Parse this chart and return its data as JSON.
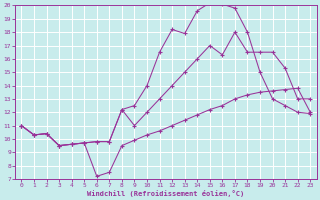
{
  "xlabel": "Windchill (Refroidissement éolien,°C)",
  "bg_color": "#c8ecec",
  "line_color": "#993399",
  "grid_color": "#ffffff",
  "xlim": [
    -0.5,
    23.5
  ],
  "ylim": [
    7,
    20
  ],
  "xticks": [
    0,
    1,
    2,
    3,
    4,
    5,
    6,
    7,
    8,
    9,
    10,
    11,
    12,
    13,
    14,
    15,
    16,
    17,
    18,
    19,
    20,
    21,
    22,
    23
  ],
  "yticks": [
    7,
    8,
    9,
    10,
    11,
    12,
    13,
    14,
    15,
    16,
    17,
    18,
    19,
    20
  ],
  "curve1_x": [
    0,
    1,
    2,
    3,
    4,
    5,
    6,
    7,
    8,
    9,
    10,
    11,
    12,
    13,
    14,
    15,
    16,
    17,
    18,
    19,
    20,
    21,
    22,
    23
  ],
  "curve1_y": [
    11.0,
    10.3,
    10.4,
    9.5,
    9.6,
    9.7,
    7.2,
    7.5,
    9.5,
    9.9,
    10.3,
    10.6,
    11.0,
    11.4,
    11.8,
    12.2,
    12.5,
    13.0,
    13.3,
    13.5,
    13.6,
    13.7,
    13.8,
    12.0
  ],
  "curve2_x": [
    0,
    1,
    2,
    3,
    4,
    5,
    6,
    7,
    8,
    9,
    10,
    11,
    12,
    13,
    14,
    15,
    16,
    17,
    18,
    19,
    20,
    21,
    22,
    23
  ],
  "curve2_y": [
    11.0,
    10.3,
    10.4,
    9.5,
    9.6,
    9.7,
    9.8,
    9.8,
    12.2,
    11.0,
    12.0,
    13.0,
    14.0,
    15.0,
    16.0,
    17.0,
    16.3,
    18.0,
    16.5,
    16.5,
    16.5,
    15.3,
    13.0,
    13.0
  ],
  "curve3_x": [
    0,
    1,
    2,
    3,
    4,
    5,
    6,
    7,
    8,
    9,
    10,
    11,
    12,
    13,
    14,
    15,
    16,
    17,
    18,
    19,
    20,
    21,
    22,
    23
  ],
  "curve3_y": [
    11.0,
    10.3,
    10.4,
    9.5,
    9.6,
    9.7,
    9.8,
    9.8,
    12.2,
    12.5,
    14.0,
    16.5,
    18.2,
    17.9,
    19.6,
    20.2,
    20.1,
    19.8,
    18.0,
    15.0,
    13.0,
    12.5,
    12.0,
    11.9
  ]
}
